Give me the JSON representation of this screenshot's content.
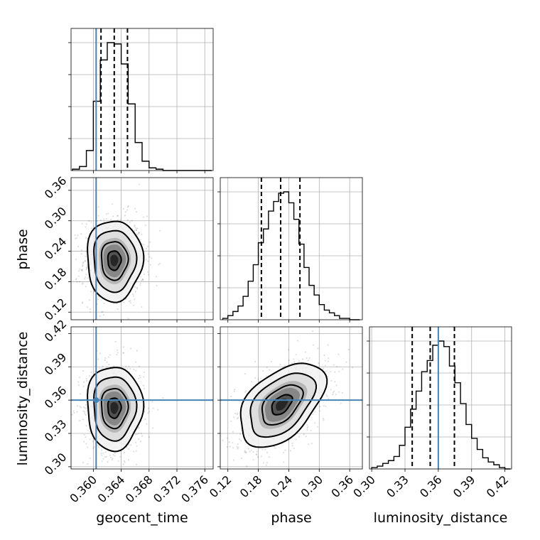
{
  "chart_data": {
    "type": "corner",
    "parameters": [
      {
        "name": "geocent_time",
        "ticks": [
          "0.360",
          "0.364",
          "0.368",
          "0.372",
          "0.376"
        ],
        "tick_values": [
          0.36,
          0.364,
          0.368,
          0.372,
          0.376
        ],
        "range": [
          0.3568,
          0.3772
        ]
      },
      {
        "name": "phase",
        "ticks": [
          "0.12",
          "0.18",
          "0.24",
          "0.30",
          "0.36"
        ],
        "tick_values": [
          0.12,
          0.18,
          0.24,
          0.3,
          0.36
        ],
        "range": [
          0.105,
          0.385
        ]
      },
      {
        "name": "luminosity_distance",
        "ticks": [
          "0.30",
          "0.33",
          "0.36",
          "0.39",
          "0.42"
        ],
        "tick_values": [
          0.3,
          0.33,
          0.36,
          0.39,
          0.42
        ],
        "range": [
          0.298,
          0.426
        ]
      }
    ],
    "truths": {
      "geocent_time": 0.3604,
      "luminosity_distance": 0.36
    },
    "marginals": [
      {
        "parameter": "geocent_time",
        "quantiles": [
          0.3611,
          0.363,
          0.3649
        ],
        "bins": [
          0.3575,
          0.3585,
          0.3595,
          0.3605,
          0.3615,
          0.3625,
          0.3635,
          0.3645,
          0.3655,
          0.3665,
          0.3675,
          0.3685,
          0.3695,
          0.3705,
          0.3715,
          0.3725,
          0.3735,
          0.3745,
          0.3755,
          0.3765
        ],
        "counts": [
          1,
          3,
          15,
          52,
          83,
          96,
          95,
          80,
          50,
          21,
          7,
          2,
          1,
          0,
          0,
          0,
          0,
          0,
          0,
          0
        ]
      },
      {
        "parameter": "phase",
        "quantiles": [
          0.186,
          0.224,
          0.262
        ],
        "bins": [
          0.115,
          0.125,
          0.135,
          0.145,
          0.155,
          0.165,
          0.175,
          0.185,
          0.195,
          0.205,
          0.215,
          0.225,
          0.235,
          0.245,
          0.255,
          0.265,
          0.275,
          0.285,
          0.295,
          0.305,
          0.315,
          0.325,
          0.335,
          0.345,
          0.355,
          0.365,
          0.375
        ],
        "counts": [
          1,
          3,
          6,
          10,
          17,
          28,
          40,
          56,
          66,
          79,
          86,
          92,
          93,
          85,
          73,
          55,
          38,
          25,
          18,
          11,
          7,
          5,
          3,
          1,
          1,
          0,
          0
        ]
      },
      {
        "parameter": "luminosity_distance",
        "quantiles": [
          0.3365,
          0.3527,
          0.3745
        ],
        "bins": [
          0.3025,
          0.3075,
          0.3125,
          0.3175,
          0.3225,
          0.3275,
          0.3325,
          0.3375,
          0.3425,
          0.3475,
          0.3525,
          0.3575,
          0.3625,
          0.3675,
          0.3725,
          0.3775,
          0.3825,
          0.3875,
          0.3925,
          0.3975,
          0.4025,
          0.4075,
          0.4125,
          0.4175,
          0.4225
        ],
        "counts": [
          1,
          2,
          4,
          6,
          9,
          17,
          30,
          43,
          56,
          70,
          78,
          89,
          92,
          88,
          74,
          62,
          47,
          32,
          22,
          14,
          8,
          5,
          3,
          1,
          0
        ]
      }
    ],
    "joint": [
      {
        "x": "geocent_time",
        "y": "phase",
        "center": [
          0.363,
          0.222
        ],
        "sigma": [
          0.0019,
          0.038
        ],
        "correlation": 0.0,
        "contour_levels": [
          0.5,
          1.0,
          1.6,
          2.1
        ]
      },
      {
        "x": "geocent_time",
        "y": "luminosity_distance",
        "center": [
          0.363,
          0.353
        ],
        "sigma": [
          0.0019,
          0.018
        ],
        "correlation": 0.0,
        "contour_levels": [
          0.5,
          1.0,
          1.6,
          2.1
        ]
      },
      {
        "x": "phase",
        "y": "luminosity_distance",
        "center": [
          0.226,
          0.356
        ],
        "sigma": [
          0.04,
          0.018
        ],
        "correlation": 0.48,
        "contour_levels": [
          0.5,
          1.0,
          1.6,
          2.1
        ]
      }
    ],
    "grid": true,
    "colors": {
      "truth": "#4682b4",
      "contour": "#000000",
      "histogram": "#000000"
    }
  }
}
